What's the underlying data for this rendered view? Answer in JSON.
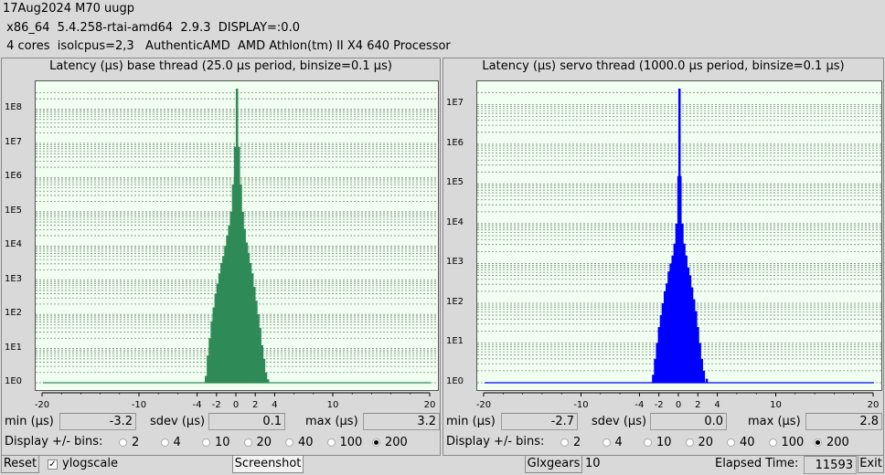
{
  "header": {
    "line1": "17Aug2024 M70 uugp",
    "line2": " x86_64  5.4.258-rtai-amd64  2.9.3  DISPLAY=:0.0",
    "line3": " 4 cores  isolcpus=2,3   AuthenticAMD  AMD Athlon(tm) II X4 640 Processor"
  },
  "panels": [
    {
      "title": "Latency (µs) base thread (25.0 µs period, binsize=0.1 µs)",
      "color": "#2e8b57",
      "min_label": "min (µs)",
      "min_value": "-3.2",
      "sdev_label": "sdev (µs)",
      "sdev_value": "0.1",
      "max_label": "max (µs)",
      "max_value": "3.2",
      "bins_label": "Display +/- bins:",
      "bins_options": [
        "2",
        "4",
        "10",
        "20",
        "40",
        "100",
        "200"
      ],
      "bins_selected": "200"
    },
    {
      "title": "Latency (µs) servo thread (1000.0 µs period, binsize=0.1 µs)",
      "color": "#0000ff",
      "min_label": "min (µs)",
      "min_value": "-2.7",
      "sdev_label": "sdev (µs)",
      "sdev_value": "0.0",
      "max_label": "max (µs)",
      "max_value": "2.8",
      "bins_label": "Display +/- bins:",
      "bins_options": [
        "2",
        "4",
        "10",
        "20",
        "40",
        "100",
        "200"
      ],
      "bins_selected": "200"
    }
  ],
  "chart_data": [
    {
      "type": "bar",
      "title": "Latency (µs) base thread (25.0 µs period, binsize=0.1 µs)",
      "y_scale": "log",
      "x_ticks": [
        "-20",
        "-10",
        "-4",
        "-2",
        "0",
        "2",
        "4",
        "10",
        "20"
      ],
      "y_ticks": [
        "1E0",
        "1E1",
        "1E2",
        "1E3",
        "1E4",
        "1E5",
        "1E6",
        "1E7",
        "1E8"
      ],
      "xlim": [
        -20,
        20
      ],
      "ylim_log10": [
        0,
        8.6
      ],
      "x": [
        -3.2,
        -3.0,
        -2.8,
        -2.6,
        -2.4,
        -2.2,
        -2.0,
        -1.8,
        -1.6,
        -1.4,
        -1.2,
        -1.0,
        -0.8,
        -0.6,
        -0.4,
        -0.2,
        0.0,
        0.2,
        0.4,
        0.6,
        0.8,
        1.0,
        1.2,
        1.4,
        1.6,
        1.8,
        2.0,
        2.2,
        2.4,
        2.6,
        2.8,
        3.0,
        3.2
      ],
      "log10_counts": [
        0.2,
        0.8,
        1.3,
        1.8,
        2.2,
        2.6,
        2.9,
        3.2,
        3.5,
        3.7,
        4.0,
        4.3,
        4.6,
        5.0,
        5.8,
        6.9,
        8.6,
        6.9,
        5.8,
        5.0,
        4.5,
        4.1,
        3.8,
        3.5,
        3.2,
        2.8,
        2.4,
        2.0,
        1.6,
        1.1,
        0.7,
        0.3,
        0.1
      ],
      "grid": true
    },
    {
      "type": "bar",
      "title": "Latency (µs) servo thread (1000.0 µs period, binsize=0.1 µs)",
      "y_scale": "log",
      "x_ticks": [
        "-20",
        "-10",
        "-4",
        "-2",
        "0",
        "2",
        "4",
        "10",
        "20"
      ],
      "y_ticks": [
        "1E0",
        "1E1",
        "1E2",
        "1E3",
        "1E4",
        "1E5",
        "1E6",
        "1E7"
      ],
      "xlim": [
        -20,
        20
      ],
      "ylim_log10": [
        0,
        7.4
      ],
      "x": [
        -2.7,
        -2.5,
        -2.3,
        -2.1,
        -1.9,
        -1.7,
        -1.5,
        -1.3,
        -1.1,
        -0.9,
        -0.7,
        -0.5,
        -0.3,
        -0.1,
        0.0,
        0.1,
        0.3,
        0.5,
        0.7,
        0.9,
        1.1,
        1.3,
        1.5,
        1.7,
        1.9,
        2.1,
        2.3,
        2.5,
        2.8
      ],
      "log10_counts": [
        0.2,
        0.6,
        1.0,
        1.4,
        1.7,
        2.0,
        2.3,
        2.5,
        2.8,
        3.0,
        3.2,
        3.5,
        4.0,
        5.2,
        7.4,
        5.2,
        4.0,
        3.5,
        3.2,
        2.9,
        2.7,
        2.4,
        2.1,
        1.8,
        1.4,
        1.0,
        0.6,
        0.3,
        0.1
      ],
      "grid": true
    }
  ],
  "footer": {
    "reset_label": "Reset",
    "ylogscale_label": "ylogscale",
    "ylogscale_checked": "✓",
    "screenshot_label": "Screenshot",
    "glxgears_label": "Glxgears",
    "glxgears_count": "10",
    "elapsed_label": "Elapsed Time:",
    "elapsed_value": "11593",
    "exit_label": "Exit"
  }
}
